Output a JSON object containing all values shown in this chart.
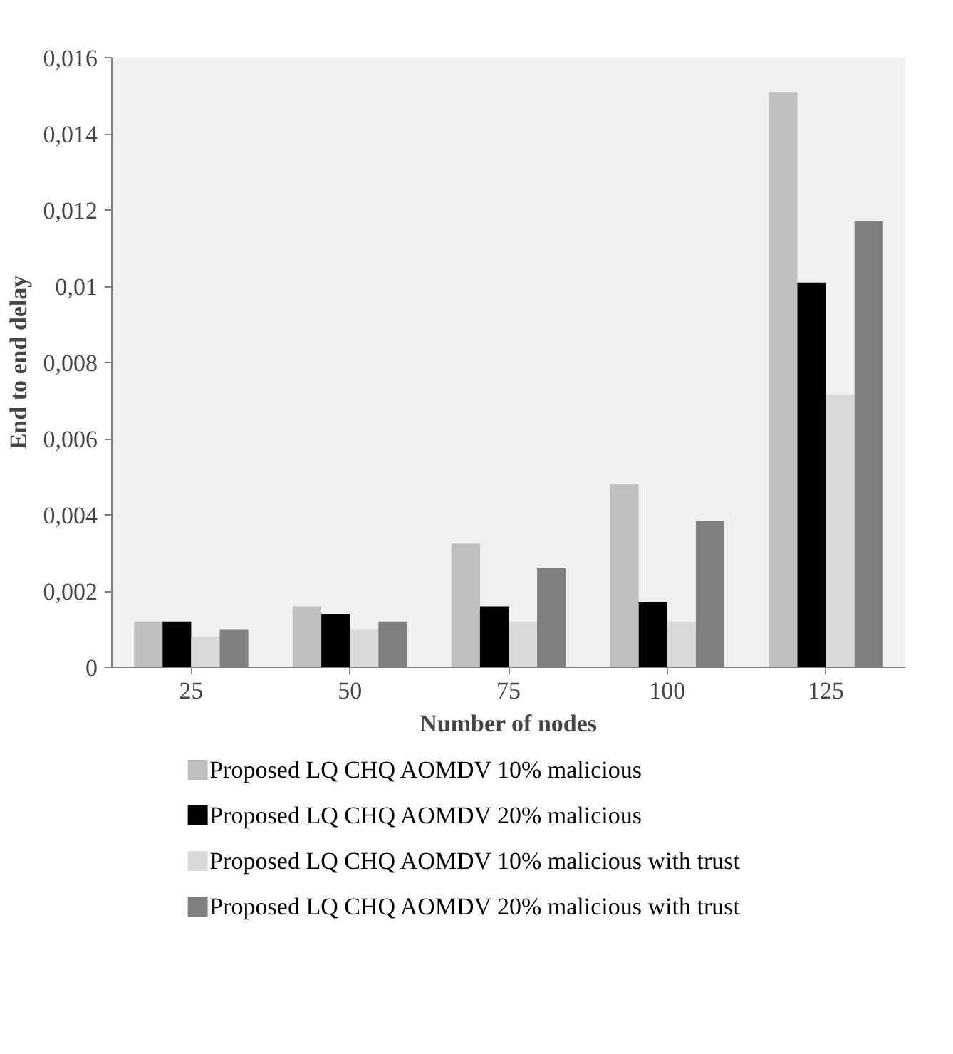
{
  "chart_data": {
    "type": "bar",
    "xlabel": "Number of nodes",
    "ylabel": "End to end delay",
    "categories": [
      "25",
      "50",
      "75",
      "100",
      "125"
    ],
    "series": [
      {
        "name": "Proposed LQ CHQ AOMDV 10% malicious",
        "color": "#bfbfbf",
        "values": [
          0.0012,
          0.0016,
          0.00325,
          0.0048,
          0.0151
        ]
      },
      {
        "name": "Proposed LQ CHQ AOMDV 20% malicious",
        "color": "#000000",
        "values": [
          0.0012,
          0.0014,
          0.0016,
          0.0017,
          0.0101
        ]
      },
      {
        "name": "Proposed LQ CHQ AOMDV 10% malicious with trust",
        "color": "#d9d9d9",
        "values": [
          0.0008,
          0.001,
          0.0012,
          0.0012,
          0.00715
        ]
      },
      {
        "name": "Proposed LQ CHQ AOMDV 20% malicious with trust",
        "color": "#808080",
        "values": [
          0.001,
          0.0012,
          0.0026,
          0.00385,
          0.0117
        ]
      }
    ],
    "ylim": [
      0,
      0.016
    ],
    "yticks": [
      {
        "value": 0,
        "label": "0"
      },
      {
        "value": 0.002,
        "label": "0,002"
      },
      {
        "value": 0.004,
        "label": "0,004"
      },
      {
        "value": 0.006,
        "label": "0,006"
      },
      {
        "value": 0.008,
        "label": "0,008"
      },
      {
        "value": 0.01,
        "label": "0,01"
      },
      {
        "value": 0.012,
        "label": "0,012"
      },
      {
        "value": 0.014,
        "label": "0,014"
      },
      {
        "value": 0.016,
        "label": "0,016"
      }
    ],
    "grid": false,
    "legend": "bottom"
  }
}
